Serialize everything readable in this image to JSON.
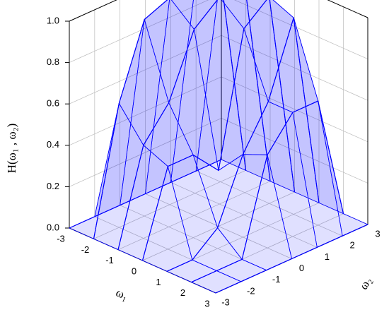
{
  "chart_data": {
    "type": "surface",
    "zlabel": "H(ω₁ , ω₂)",
    "xlabel": "ω₁",
    "ylabel": "ω₂",
    "x": [
      -3,
      -2,
      -1,
      0,
      1,
      2,
      3
    ],
    "y": [
      -3,
      -2,
      -1,
      0,
      1,
      2,
      3
    ],
    "z": [
      [
        0,
        0,
        0,
        0,
        0,
        0,
        0
      ],
      [
        0,
        0.6,
        0.95,
        1.0,
        1.0,
        1.0,
        0
      ],
      [
        0,
        0.45,
        0.6,
        0.9,
        1.0,
        1.0,
        0
      ],
      [
        0,
        0.4,
        0.4,
        0.27,
        0.9,
        1.0,
        0
      ],
      [
        0,
        0.0,
        0.1,
        0.4,
        0.6,
        0.95,
        0
      ],
      [
        0,
        0.0,
        0.0,
        0.45,
        0.6,
        0.6,
        0
      ],
      [
        0,
        0,
        0,
        0,
        0,
        0,
        0
      ]
    ],
    "color": "#0000ff",
    "xlim": [
      -3,
      3
    ],
    "ylim": [
      -3,
      3
    ],
    "zlim": [
      0,
      1
    ],
    "xticks": [
      -3,
      -2,
      -1,
      0,
      1,
      2,
      3
    ],
    "yticks": [
      -3,
      -2,
      -1,
      0,
      1,
      2,
      3
    ],
    "zticks": [
      {
        "value": 0,
        "label": "0.0"
      },
      {
        "value": 0.2,
        "label": "0.2"
      },
      {
        "value": 0.4,
        "label": "0.4"
      },
      {
        "value": 0.6,
        "label": "0.6"
      },
      {
        "value": 0.8,
        "label": "0.8"
      },
      {
        "value": 1,
        "label": "1.0"
      }
    ],
    "grid": true
  }
}
